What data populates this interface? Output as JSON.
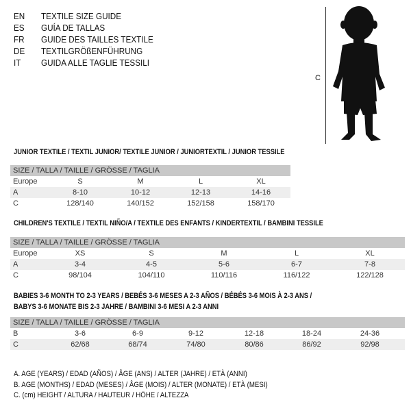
{
  "header": {
    "languages": [
      {
        "code": "EN",
        "text": "TEXTILE SIZE GUIDE"
      },
      {
        "code": "ES",
        "text": "GUÍA DE TALLAS"
      },
      {
        "code": "FR",
        "text": "GUIDE DES TAILLES TEXTILE"
      },
      {
        "code": "DE",
        "text": "TEXTILGRÖßENFÜHRUNG"
      },
      {
        "code": "IT",
        "text": "GUIDA ALLE TAGLIE TESSILI"
      }
    ]
  },
  "figure": {
    "measure_label": "C"
  },
  "size_header": "SIZE / TALLA / TAILLE / GRÖSSE / TAGLIA",
  "junior": {
    "title": "JUNIOR TEXTILE / TEXTIL JUNIOR/ TEXTILE JUNIOR / JUNIORTEXTIL / JUNIOR TESSILE",
    "rows": [
      {
        "label": "Europe",
        "values": [
          "S",
          "M",
          "L",
          "XL"
        ]
      },
      {
        "label": "A",
        "values": [
          "8-10",
          "10-12",
          "12-13",
          "14-16"
        ]
      },
      {
        "label": "C",
        "values": [
          "128/140",
          "140/152",
          "152/158",
          "158/170"
        ]
      }
    ]
  },
  "children": {
    "title": "CHILDREN'S TEXTILE / TEXTIL NIÑO/A / TEXTILE DES ENFANTS / KINDERTEXTIL / BAMBINI TESSILE",
    "rows": [
      {
        "label": "Europe",
        "values": [
          "XS",
          "S",
          "M",
          "L",
          "XL"
        ]
      },
      {
        "label": "A",
        "values": [
          "3-4",
          "4-5",
          "5-6",
          "6-7",
          "7-8"
        ]
      },
      {
        "label": "C",
        "values": [
          "98/104",
          "104/110",
          "110/116",
          "116/122",
          "122/128"
        ]
      }
    ]
  },
  "babies": {
    "title_line1": "BABIES 3-6 MONTH TO 2-3 YEARS / BEBÉS 3-6 MESES A 2-3 AÑOS / BÉBÉS 3-6 MOIS À 2-3 ANS /",
    "title_line2": "BABYS 3-6 MONATE BIS 2-3 JAHRE / BAMBINI 3-6 MESI A 2-3 ANNI",
    "rows": [
      {
        "label": "B",
        "values": [
          "3-6",
          "6-9",
          "9-12",
          "12-18",
          "18-24",
          "24-36"
        ]
      },
      {
        "label": "C",
        "values": [
          "62/68",
          "68/74",
          "74/80",
          "80/86",
          "86/92",
          "92/98"
        ]
      }
    ]
  },
  "legend": [
    "A. AGE (YEARS) / EDAD (AÑOS) / ÂGE (ANS) / ALTER (JAHRE) / ETÀ (ANNI)",
    "B. AGE (MONTHS) / EDAD (MESES) / ÂGE (MOIS) / ALTER (MONATE) / ETÀ (MESI)",
    "C. (cm) HEIGHT / ALTURA / HAUTEUR / HÖHE / ALTEZZA"
  ]
}
